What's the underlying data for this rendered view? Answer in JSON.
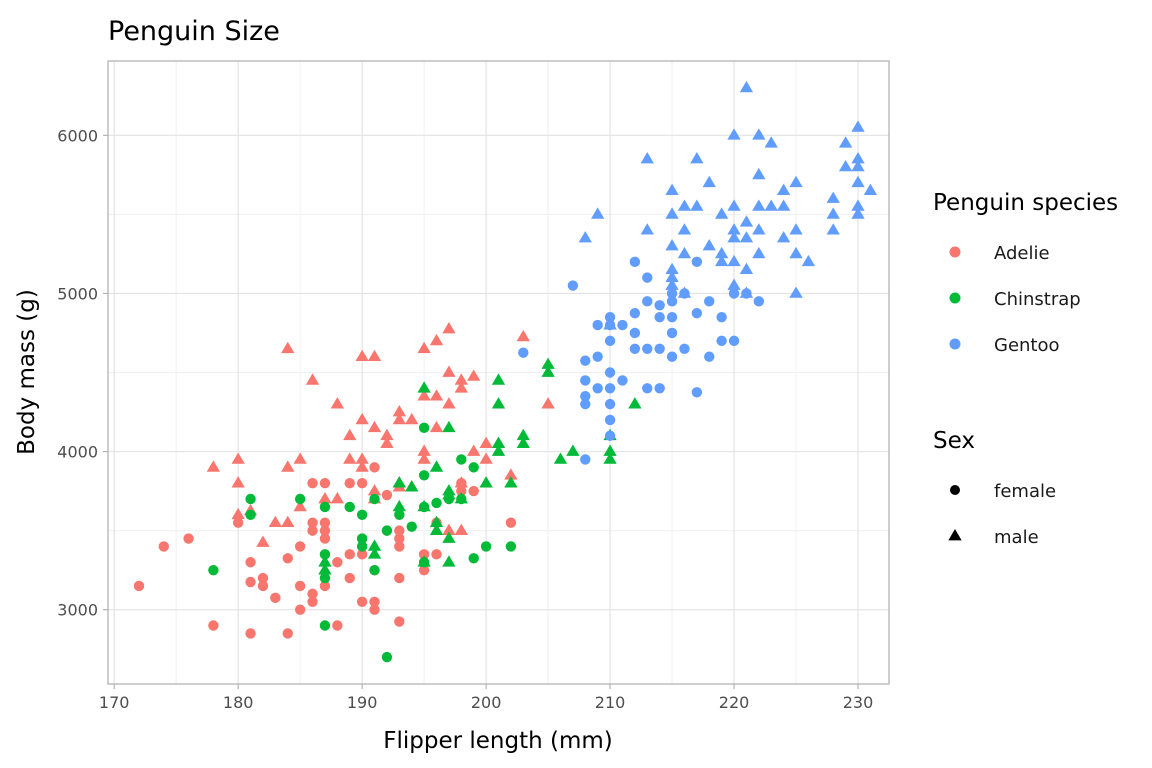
{
  "chart_data": {
    "type": "scatter",
    "title": "Penguin Size",
    "xlabel": "Flipper length (mm)",
    "ylabel": "Body mass (g)",
    "xlim": [
      169.5,
      232.5
    ],
    "ylim": [
      2530,
      6470
    ],
    "xticks": [
      170,
      180,
      190,
      200,
      210,
      220,
      230
    ],
    "yticks": [
      3000,
      4000,
      5000,
      6000
    ],
    "grid": true,
    "legend_position": "right",
    "color_legend": {
      "title": "Penguin species",
      "entries": [
        {
          "name": "Adelie",
          "color": "#F8766D"
        },
        {
          "name": "Chinstrap",
          "color": "#00BA38"
        },
        {
          "name": "Gentoo",
          "color": "#619CFF"
        }
      ]
    },
    "shape_legend": {
      "title": "Sex",
      "entries": [
        {
          "name": "female",
          "shape": "circle"
        },
        {
          "name": "male",
          "shape": "triangle"
        }
      ]
    },
    "series": [
      {
        "species": "Adelie",
        "sex": "female",
        "points": [
          [
            172,
            3150
          ],
          [
            174,
            3400
          ],
          [
            176,
            3450
          ],
          [
            178,
            2900
          ],
          [
            180,
            3550
          ],
          [
            181,
            3300
          ],
          [
            181,
            3175
          ],
          [
            181,
            2850
          ],
          [
            182,
            3200
          ],
          [
            182,
            3150
          ],
          [
            183,
            3075
          ],
          [
            184,
            3325
          ],
          [
            184,
            2850
          ],
          [
            185,
            3400
          ],
          [
            185,
            3150
          ],
          [
            185,
            3000
          ],
          [
            186,
            3550
          ],
          [
            186,
            3500
          ],
          [
            186,
            3800
          ],
          [
            186,
            3100
          ],
          [
            186,
            3050
          ],
          [
            187,
            3800
          ],
          [
            187,
            3550
          ],
          [
            187,
            3500
          ],
          [
            187,
            3450
          ],
          [
            187,
            3150
          ],
          [
            188,
            3300
          ],
          [
            188,
            2900
          ],
          [
            189,
            3800
          ],
          [
            189,
            3350
          ],
          [
            189,
            3200
          ],
          [
            190,
            3800
          ],
          [
            190,
            3450
          ],
          [
            190,
            3350
          ],
          [
            190,
            3050
          ],
          [
            191,
            3900
          ],
          [
            191,
            3250
          ],
          [
            191,
            3050
          ],
          [
            191,
            3000
          ],
          [
            192,
            3725
          ],
          [
            192,
            3500
          ],
          [
            193,
            3500
          ],
          [
            193,
            3450
          ],
          [
            193,
            3400
          ],
          [
            193,
            3200
          ],
          [
            193,
            2925
          ],
          [
            195,
            3250
          ],
          [
            195,
            3350
          ],
          [
            196,
            3350
          ],
          [
            196,
            3550
          ],
          [
            198,
            3750
          ],
          [
            198,
            3800
          ],
          [
            199,
            3750
          ],
          [
            202,
            3550
          ]
        ]
      },
      {
        "species": "Adelie",
        "sex": "male",
        "points": [
          [
            178,
            3900
          ],
          [
            180,
            3950
          ],
          [
            180,
            3800
          ],
          [
            180,
            3600
          ],
          [
            181,
            3625
          ],
          [
            182,
            3425
          ],
          [
            183,
            3550
          ],
          [
            184,
            3900
          ],
          [
            184,
            3550
          ],
          [
            184,
            4650
          ],
          [
            185,
            3950
          ],
          [
            185,
            3650
          ],
          [
            186,
            4450
          ],
          [
            187,
            3700
          ],
          [
            188,
            3700
          ],
          [
            188,
            4300
          ],
          [
            189,
            3950
          ],
          [
            189,
            4100
          ],
          [
            190,
            4600
          ],
          [
            190,
            3950
          ],
          [
            190,
            4200
          ],
          [
            190,
            3900
          ],
          [
            191,
            4600
          ],
          [
            191,
            4150
          ],
          [
            191,
            3700
          ],
          [
            191,
            3750
          ],
          [
            192,
            4050
          ],
          [
            192,
            4100
          ],
          [
            193,
            4250
          ],
          [
            193,
            4200
          ],
          [
            193,
            3800
          ],
          [
            193,
            3775
          ],
          [
            194,
            4200
          ],
          [
            194,
            3775
          ],
          [
            195,
            3950
          ],
          [
            195,
            4000
          ],
          [
            195,
            4350
          ],
          [
            195,
            4650
          ],
          [
            196,
            4700
          ],
          [
            196,
            4350
          ],
          [
            196,
            4150
          ],
          [
            197,
            4500
          ],
          [
            197,
            4775
          ],
          [
            197,
            4300
          ],
          [
            198,
            4400
          ],
          [
            198,
            4450
          ],
          [
            198,
            3800
          ],
          [
            198,
            3500
          ],
          [
            199,
            4000
          ],
          [
            199,
            4475
          ],
          [
            200,
            4050
          ],
          [
            200,
            3950
          ],
          [
            201,
            4050
          ],
          [
            202,
            3850
          ],
          [
            203,
            4725
          ],
          [
            205,
            4300
          ],
          [
            197,
            3500
          ]
        ]
      },
      {
        "species": "Chinstrap",
        "sex": "female",
        "points": [
          [
            178,
            3250
          ],
          [
            181,
            3700
          ],
          [
            181,
            3600
          ],
          [
            185,
            3700
          ],
          [
            187,
            3200
          ],
          [
            187,
            3350
          ],
          [
            187,
            3650
          ],
          [
            187,
            2900
          ],
          [
            189,
            3650
          ],
          [
            190,
            3600
          ],
          [
            190,
            3450
          ],
          [
            190,
            3400
          ],
          [
            191,
            3700
          ],
          [
            191,
            3250
          ],
          [
            192,
            3500
          ],
          [
            192,
            2700
          ],
          [
            193,
            3600
          ],
          [
            194,
            3525
          ],
          [
            195,
            3650
          ],
          [
            195,
            3850
          ],
          [
            195,
            3300
          ],
          [
            195,
            4150
          ],
          [
            196,
            3675
          ],
          [
            197,
            3700
          ],
          [
            198,
            3950
          ],
          [
            198,
            3700
          ],
          [
            199,
            3900
          ],
          [
            199,
            3325
          ],
          [
            200,
            3400
          ],
          [
            202,
            3400
          ]
        ]
      },
      {
        "species": "Chinstrap",
        "sex": "male",
        "points": [
          [
            187,
            3250
          ],
          [
            187,
            3300
          ],
          [
            191,
            3400
          ],
          [
            191,
            3350
          ],
          [
            193,
            3800
          ],
          [
            193,
            3650
          ],
          [
            194,
            3775
          ],
          [
            195,
            4400
          ],
          [
            195,
            3300
          ],
          [
            195,
            3650
          ],
          [
            196,
            3900
          ],
          [
            196,
            3550
          ],
          [
            196,
            3500
          ],
          [
            197,
            4150
          ],
          [
            197,
            3750
          ],
          [
            197,
            3725
          ],
          [
            197,
            3450
          ],
          [
            197,
            3300
          ],
          [
            198,
            3700
          ],
          [
            200,
            3800
          ],
          [
            201,
            4050
          ],
          [
            201,
            4000
          ],
          [
            201,
            4300
          ],
          [
            201,
            4450
          ],
          [
            202,
            3800
          ],
          [
            203,
            4100
          ],
          [
            203,
            4050
          ],
          [
            205,
            4550
          ],
          [
            205,
            4500
          ],
          [
            206,
            3950
          ],
          [
            207,
            4000
          ],
          [
            210,
            4800
          ],
          [
            210,
            4100
          ],
          [
            210,
            3950
          ],
          [
            210,
            4000
          ],
          [
            212,
            4300
          ]
        ]
      },
      {
        "species": "Gentoo",
        "sex": "female",
        "points": [
          [
            203,
            4625
          ],
          [
            207,
            5050
          ],
          [
            208,
            4575
          ],
          [
            208,
            4450
          ],
          [
            208,
            4350
          ],
          [
            208,
            4300
          ],
          [
            208,
            3950
          ],
          [
            209,
            4800
          ],
          [
            209,
            4600
          ],
          [
            209,
            4400
          ],
          [
            210,
            4850
          ],
          [
            210,
            4800
          ],
          [
            210,
            4700
          ],
          [
            210,
            4500
          ],
          [
            210,
            4400
          ],
          [
            210,
            4300
          ],
          [
            210,
            4200
          ],
          [
            210,
            4100
          ],
          [
            211,
            4450
          ],
          [
            211,
            4800
          ],
          [
            212,
            4875
          ],
          [
            212,
            4750
          ],
          [
            212,
            4650
          ],
          [
            212,
            5200
          ],
          [
            213,
            4950
          ],
          [
            213,
            5100
          ],
          [
            213,
            4650
          ],
          [
            213,
            4400
          ],
          [
            214,
            4925
          ],
          [
            214,
            4850
          ],
          [
            214,
            4650
          ],
          [
            214,
            4400
          ],
          [
            215,
            4950
          ],
          [
            215,
            4850
          ],
          [
            215,
            4750
          ],
          [
            215,
            4600
          ],
          [
            215,
            5000
          ],
          [
            216,
            5000
          ],
          [
            216,
            4650
          ],
          [
            217,
            4875
          ],
          [
            217,
            4375
          ],
          [
            217,
            5200
          ],
          [
            218,
            4950
          ],
          [
            218,
            4600
          ],
          [
            219,
            4700
          ],
          [
            219,
            4850
          ],
          [
            220,
            4700
          ],
          [
            220,
            5000
          ],
          [
            222,
            4950
          ],
          [
            221,
            5000
          ]
        ]
      },
      {
        "species": "Gentoo",
        "sex": "male",
        "points": [
          [
            208,
            5350
          ],
          [
            209,
            5500
          ],
          [
            210,
            4800
          ],
          [
            213,
            5400
          ],
          [
            213,
            5850
          ],
          [
            215,
            5650
          ],
          [
            215,
            5500
          ],
          [
            215,
            5300
          ],
          [
            215,
            5150
          ],
          [
            215,
            5100
          ],
          [
            215,
            5050
          ],
          [
            216,
            5550
          ],
          [
            216,
            5400
          ],
          [
            216,
            5250
          ],
          [
            216,
            5000
          ],
          [
            217,
            5850
          ],
          [
            217,
            5550
          ],
          [
            218,
            5300
          ],
          [
            218,
            5700
          ],
          [
            219,
            5250
          ],
          [
            219,
            5200
          ],
          [
            219,
            5500
          ],
          [
            220,
            5550
          ],
          [
            220,
            5350
          ],
          [
            220,
            5050
          ],
          [
            220,
            5400
          ],
          [
            220,
            6000
          ],
          [
            220,
            5200
          ],
          [
            221,
            5150
          ],
          [
            221,
            5450
          ],
          [
            221,
            5350
          ],
          [
            221,
            5000
          ],
          [
            221,
            6300
          ],
          [
            222,
            5400
          ],
          [
            222,
            5250
          ],
          [
            222,
            5750
          ],
          [
            222,
            5550
          ],
          [
            222,
            6000
          ],
          [
            223,
            5550
          ],
          [
            223,
            5950
          ],
          [
            224,
            5350
          ],
          [
            224,
            5650
          ],
          [
            224,
            5550
          ],
          [
            225,
            5000
          ],
          [
            225,
            5700
          ],
          [
            225,
            5250
          ],
          [
            225,
            5400
          ],
          [
            226,
            5200
          ],
          [
            228,
            5400
          ],
          [
            228,
            5600
          ],
          [
            228,
            5500
          ],
          [
            229,
            5800
          ],
          [
            229,
            5950
          ],
          [
            230,
            5500
          ],
          [
            230,
            5550
          ],
          [
            230,
            5700
          ],
          [
            230,
            5800
          ],
          [
            230,
            5850
          ],
          [
            230,
            6050
          ],
          [
            231,
            5650
          ]
        ]
      }
    ]
  }
}
